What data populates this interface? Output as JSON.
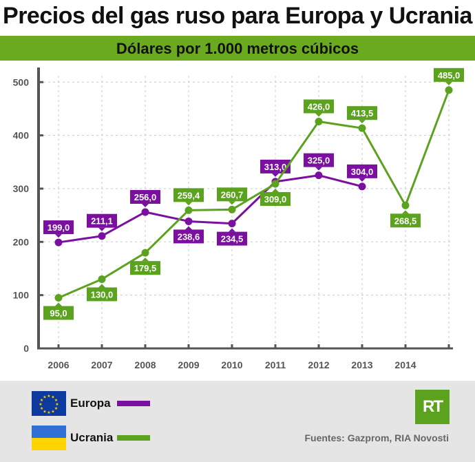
{
  "header": {
    "title": "Precios del gas ruso para Europa y Ucrania",
    "subtitle": "Dólares por 1.000 metros cúbicos"
  },
  "chart_data": {
    "type": "line",
    "title": "Precios del gas ruso para Europa y Ucrania",
    "subtitle": "Dólares por 1.000 metros cúbicos",
    "categories": [
      "2006",
      "2007",
      "2008",
      "2009",
      "2010",
      "2011",
      "2012",
      "2013",
      "2014",
      ""
    ],
    "y_ticks": [
      0,
      100,
      200,
      300,
      400,
      500
    ],
    "ylim": [
      0,
      500
    ],
    "grid": true,
    "series": [
      {
        "name": "Europa",
        "color": "#7b0fa0",
        "values": [
          199.0,
          211.1,
          256.0,
          238.6,
          234.5,
          313.0,
          325.0,
          304.0,
          null,
          null
        ],
        "labels": [
          "199,0",
          "211,1",
          "256,0",
          "238,6",
          "234,5",
          "313,0",
          "325,0",
          "304,0",
          null,
          null
        ]
      },
      {
        "name": "Ucrania",
        "color": "#5ba31e",
        "values": [
          95.0,
          130.0,
          179.5,
          259.4,
          260.7,
          309.0,
          426.0,
          413.5,
          268.5,
          485.0
        ],
        "labels": [
          "95,0",
          "130,0",
          "179,5",
          "259,4",
          "260,7",
          "309,0",
          "426,0",
          "413,5",
          "268,5",
          "485,0"
        ]
      }
    ]
  },
  "legend": {
    "europa": {
      "label": "Europa",
      "color": "#7b0fa0",
      "flag_icon": "eu-flag-icon"
    },
    "ucrania": {
      "label": "Ucrania",
      "color": "#5ba31e",
      "flag_icon": "ukraine-flag-icon"
    }
  },
  "footer": {
    "logo_text": "RT",
    "sources": "Fuentes: Gazprom, RIA Novosti"
  }
}
